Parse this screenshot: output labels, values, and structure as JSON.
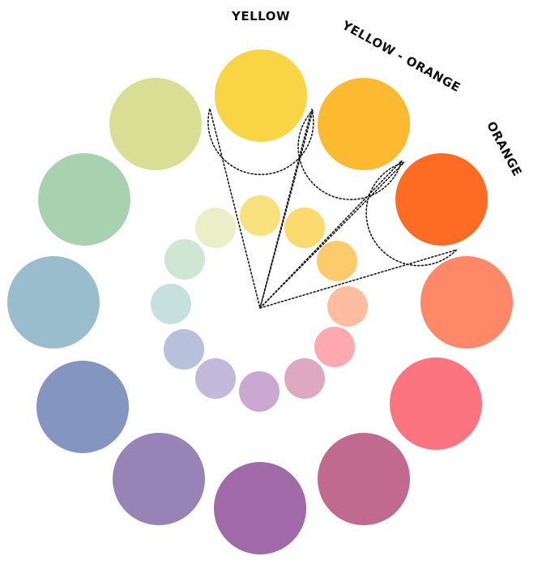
{
  "labels": {
    "yellow": "YELLOW",
    "yellow_orange": "YELLOW - ORANGE",
    "orange": "ORANGE"
  },
  "outer_circles": [
    {
      "name": "yellow",
      "color": "#F9D546"
    },
    {
      "name": "yellow-orange",
      "color": "#FDBA31"
    },
    {
      "name": "orange",
      "color": "#FE6C23"
    },
    {
      "name": "red-orange",
      "color": "#FE8868"
    },
    {
      "name": "red",
      "color": "#FB7480"
    },
    {
      "name": "red-violet",
      "color": "#C1698E"
    },
    {
      "name": "violet",
      "color": "#A06AA8"
    },
    {
      "name": "blue-violet",
      "color": "#9783B6"
    },
    {
      "name": "blue",
      "color": "#8495BF"
    },
    {
      "name": "blue-green",
      "color": "#9ABDCE"
    },
    {
      "name": "green",
      "color": "#A7D1AF"
    },
    {
      "name": "yellow-green",
      "color": "#DADE94"
    }
  ],
  "inner_circles": [
    {
      "name": "yellow-tint",
      "color": "#F8E07C"
    },
    {
      "name": "yellow-orange-tint",
      "color": "#FCDA6F"
    },
    {
      "name": "orange-tint",
      "color": "#FDCB6B"
    },
    {
      "name": "red-orange-tint",
      "color": "#FEBDA1"
    },
    {
      "name": "red-tint",
      "color": "#FEA9B0"
    },
    {
      "name": "red-violet-tint",
      "color": "#DEA8C0"
    },
    {
      "name": "violet-tint",
      "color": "#CBA8D1"
    },
    {
      "name": "blue-violet-tint",
      "color": "#C3B9DA"
    },
    {
      "name": "blue-tint",
      "color": "#B8C1DC"
    },
    {
      "name": "blue-green-tint",
      "color": "#C6E0DD"
    },
    {
      "name": "green-tint",
      "color": "#CEE6D3"
    },
    {
      "name": "yellow-green-tint",
      "color": "#EBEFC7"
    }
  ]
}
